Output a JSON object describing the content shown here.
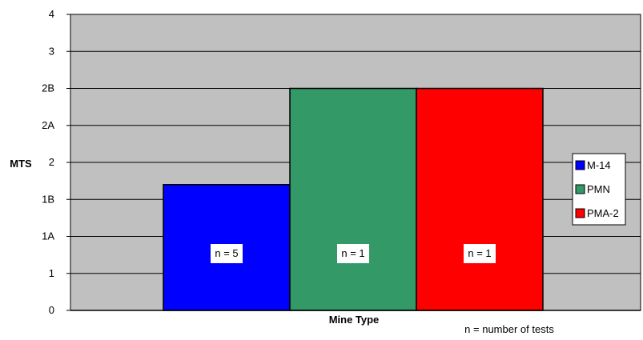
{
  "chart_data": {
    "type": "bar",
    "ylabel": "MTS",
    "xlabel": "Mine Type",
    "note": "n = number of tests",
    "y_ticks": [
      "0",
      "1",
      "1A",
      "1B",
      "2",
      "2A",
      "2B",
      "3",
      "4"
    ],
    "ylim": [
      0,
      8
    ],
    "grid": true,
    "legend_position": "right",
    "plot_background": "#C0C0C0",
    "series": [
      {
        "name": "M-14",
        "value": 3.4,
        "color": "#0000FF",
        "label": "n = 5"
      },
      {
        "name": "PMN",
        "value": 6,
        "color": "#339966",
        "label": "n = 1"
      },
      {
        "name": "PMA-2",
        "value": 6,
        "color": "#FF0000",
        "label": "n = 1"
      }
    ]
  }
}
